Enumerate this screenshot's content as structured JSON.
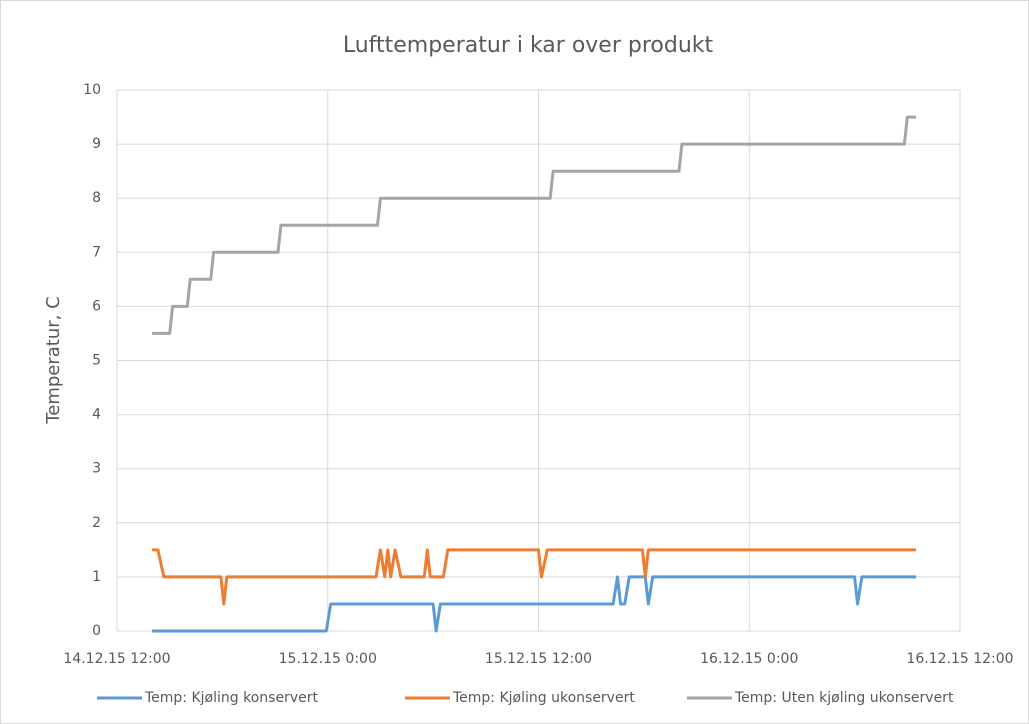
{
  "chart_data": {
    "type": "line",
    "title": "Lufttemperatur i kar over produkt",
    "y_label": "Temperatur, C",
    "ylim": [
      0,
      10
    ],
    "yticks": [
      0,
      1,
      2,
      3,
      4,
      5,
      6,
      7,
      8,
      9,
      10
    ],
    "xlim": [
      "14.12.15 12:00",
      "16.12.15 12:00"
    ],
    "xticks": [
      "14.12.15 12:00",
      "15.12.15 0:00",
      "15.12.15 12:00",
      "16.12.15 0:00",
      "16.12.15 12:00"
    ],
    "grid": true,
    "legend": "bottom",
    "series": [
      {
        "name": "Temp: Kjøling konservert",
        "color": "#5b9bd5",
        "x": [
          "14.12.15 14:00",
          "14.12.15 23:55",
          "15.12.15 0:10",
          "15.12.15 6:00",
          "15.12.15 6:10",
          "15.12.15 6:25",
          "15.12.15 16:15",
          "15.12.15 16:30",
          "15.12.15 16:40",
          "15.12.15 16:55",
          "15.12.15 17:10",
          "15.12.15 18:05",
          "15.12.15 18:15",
          "15.12.15 18:30",
          "16.12.15 6:00",
          "16.12.15 6:10",
          "16.12.15 6:25",
          "16.12.15 9:30"
        ],
        "values": [
          0,
          0,
          0.5,
          0.5,
          0,
          0.5,
          0.5,
          1,
          0.5,
          0.5,
          1,
          1,
          0.5,
          1,
          1,
          0.5,
          1,
          1
        ]
      },
      {
        "name": "Temp: Kjøling ukonservert",
        "color": "#ed7d31",
        "x": [
          "14.12.15 14:00",
          "14.12.15 14:20",
          "14.12.15 14:40",
          "14.12.15 17:55",
          "14.12.15 18:05",
          "14.12.15 18:15",
          "15.12.15 2:45",
          "15.12.15 3:00",
          "15.12.15 3:15",
          "15.12.15 3:25",
          "15.12.15 3:35",
          "15.12.15 3:50",
          "15.12.15 4:10",
          "15.12.15 5:30",
          "15.12.15 5:40",
          "15.12.15 5:50",
          "15.12.15 6:35",
          "15.12.15 6:50",
          "15.12.15 12:00",
          "15.12.15 12:10",
          "15.12.15 12:30",
          "15.12.15 17:55",
          "15.12.15 18:05",
          "15.12.15 18:15",
          "16.12.15 9:30"
        ],
        "values": [
          1.5,
          1.5,
          1,
          1,
          0.5,
          1,
          1,
          1.5,
          1,
          1.5,
          1,
          1.5,
          1,
          1,
          1.5,
          1,
          1,
          1.5,
          1.5,
          1,
          1.5,
          1.5,
          1,
          1.5,
          1.5
        ]
      },
      {
        "name": "Temp: Uten kjøling ukonservert",
        "color": "#a5a5a5",
        "x": [
          "14.12.15 14:00",
          "14.12.15 15:00",
          "14.12.15 15:10",
          "14.12.15 16:00",
          "14.12.15 16:10",
          "14.12.15 17:20",
          "14.12.15 17:30",
          "14.12.15 21:10",
          "14.12.15 21:20",
          "15.12.15 2:50",
          "15.12.15 3:00",
          "15.12.15 12:40",
          "15.12.15 12:50",
          "15.12.15 20:00",
          "15.12.15 20:10",
          "16.12.15 8:50",
          "16.12.15 9:00",
          "16.12.15 9:30"
        ],
        "values": [
          5.5,
          5.5,
          6,
          6,
          6.5,
          6.5,
          7,
          7,
          7.5,
          7.5,
          8,
          8,
          8.5,
          8.5,
          9,
          9,
          9.5,
          9.5
        ]
      }
    ]
  }
}
